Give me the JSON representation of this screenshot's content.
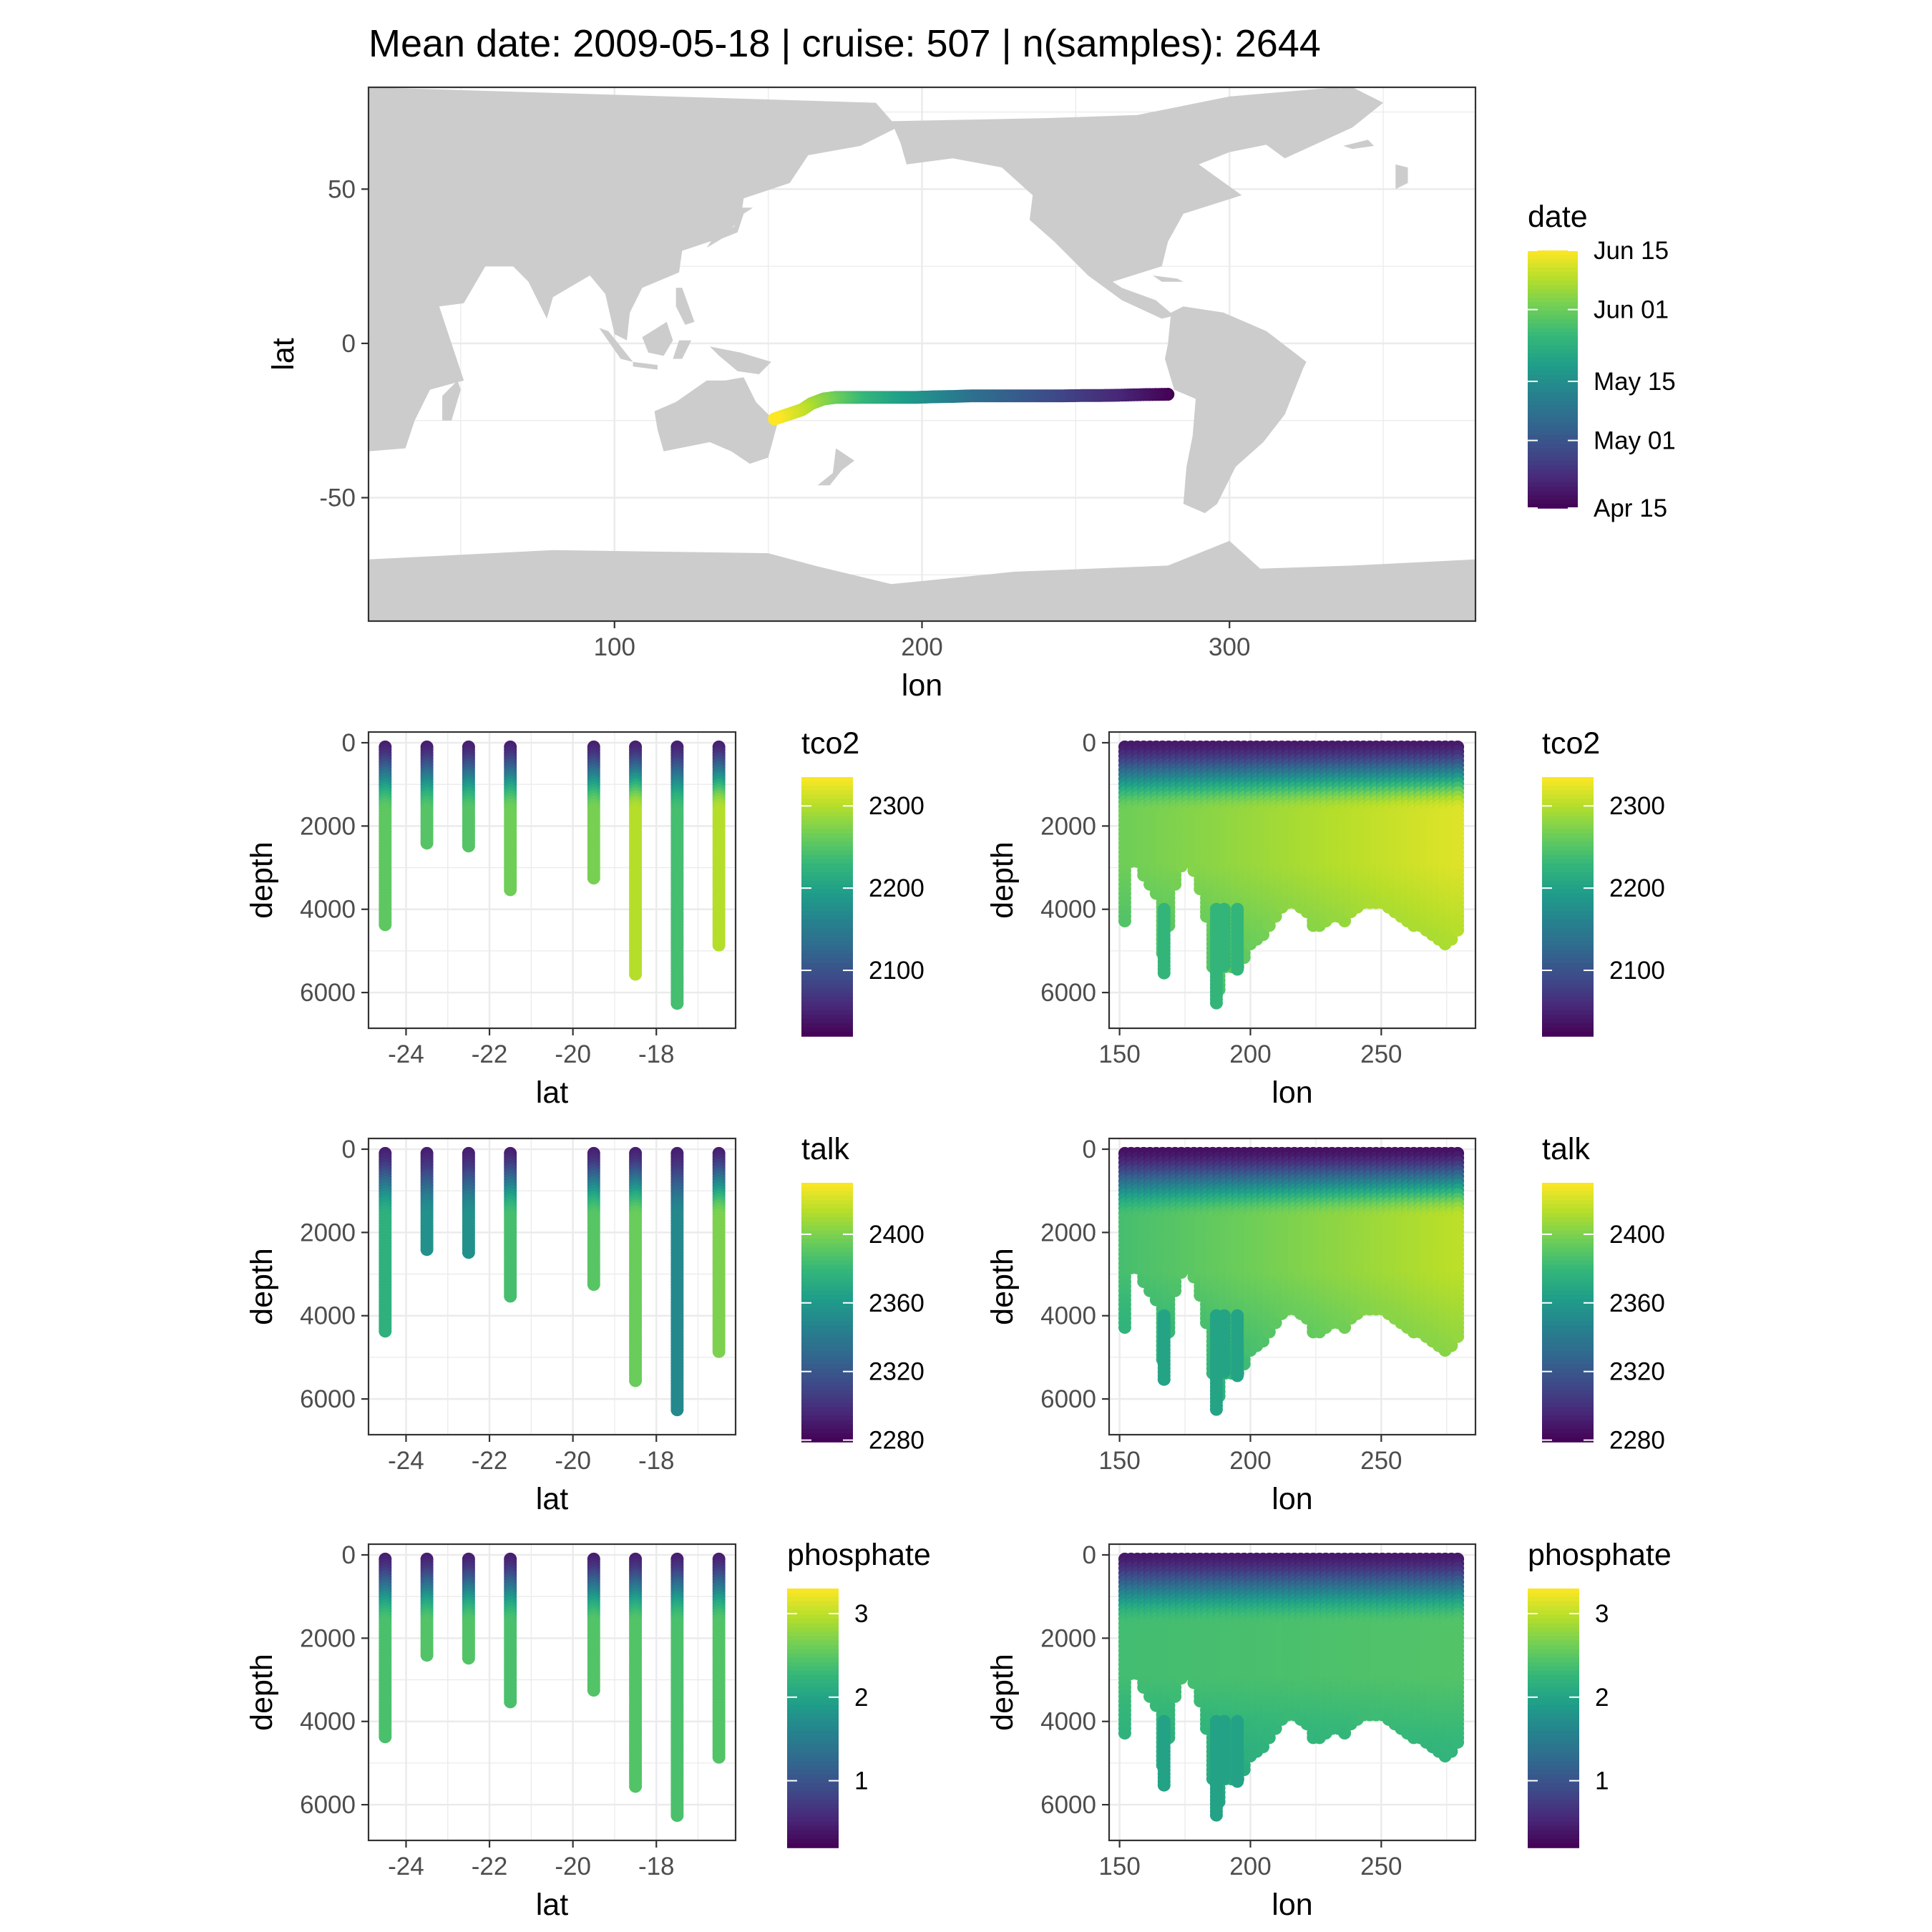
{
  "figure": {
    "title": "Mean date: 2009-05-18 | cruise: 507 | n(samples): 2644"
  },
  "colors": {
    "land": "#cccccc",
    "grid": "#ebebeb",
    "frame": "#333333",
    "tick_label": "#4d4d4d",
    "viridis": [
      "#440154",
      "#482878",
      "#3e4a89",
      "#31688e",
      "#26828e",
      "#1f9e89",
      "#35b779",
      "#6ece58",
      "#b5de2b",
      "#fde725"
    ]
  },
  "chart_data": [
    {
      "id": "map",
      "type": "scatter",
      "title": "",
      "xlabel": "lon",
      "ylabel": "lat",
      "xlim": [
        20,
        380
      ],
      "ylim": [
        -90,
        83
      ],
      "xticks": [
        100,
        200,
        300
      ],
      "yticks": [
        -50,
        0,
        50
      ],
      "grid": true,
      "background": "land mask (world map)",
      "legend": {
        "title": "date",
        "position": "right",
        "type": "colorbar",
        "labels": [
          "Apr 15",
          "May 01",
          "May 15",
          "Jun 01",
          "Jun 15"
        ],
        "label_values": [
          0,
          16,
          30,
          47,
          61
        ],
        "range": [
          0,
          61
        ]
      },
      "series": [
        {
          "lon": [
            280,
            272,
            264,
            258,
            252,
            246,
            240,
            234,
            228,
            222,
            216,
            210,
            204,
            198,
            192,
            186,
            180,
            176,
            172,
            168,
            164,
            161,
            158,
            155,
            152
          ],
          "lat": [
            -16.5,
            -16.6,
            -16.8,
            -16.9,
            -16.9,
            -17.0,
            -17.0,
            -17.0,
            -17.0,
            -17.0,
            -17.0,
            -17.2,
            -17.3,
            -17.5,
            -17.5,
            -17.5,
            -17.5,
            -17.5,
            -17.5,
            -18.0,
            -19.5,
            -21.5,
            -22.5,
            -23.5,
            -24.5
          ],
          "date": [
            0,
            3,
            6,
            8,
            10,
            12,
            14,
            16,
            18,
            20,
            22,
            25,
            28,
            31,
            34,
            37,
            40,
            43,
            46,
            49,
            52,
            55,
            57,
            59,
            61
          ]
        }
      ]
    },
    {
      "id": "tco2-lat",
      "type": "scatter",
      "xlabel": "lat",
      "ylabel": "depth",
      "xlim": [
        -24.9,
        -16.1
      ],
      "ylim": [
        0,
        6600
      ],
      "y_reversed": true,
      "xticks": [
        -24,
        -22,
        -20,
        -18
      ],
      "yticks": [
        0,
        2000,
        4000,
        6000
      ],
      "grid": true,
      "legend": {
        "title": "tco2",
        "position": "right",
        "type": "colorbar",
        "labels": [
          "2100",
          "2200",
          "2300"
        ],
        "label_values": [
          2100,
          2200,
          2300
        ],
        "range": [
          2020,
          2335
        ]
      },
      "stations": [
        {
          "x": -24.5,
          "max_depth": 4400,
          "deep_value": 2255
        },
        {
          "x": -23.5,
          "max_depth": 2450,
          "deep_value": 2250
        },
        {
          "x": -22.5,
          "max_depth": 2500,
          "deep_value": 2250
        },
        {
          "x": -21.5,
          "max_depth": 3550,
          "deep_value": 2265
        },
        {
          "x": -19.5,
          "max_depth": 3250,
          "deep_value": 2270
        },
        {
          "x": -18.5,
          "max_depth": 5600,
          "deep_value": 2300
        },
        {
          "x": -17.5,
          "max_depth": 6300,
          "deep_value": 2240
        },
        {
          "x": -16.5,
          "max_depth": 4900,
          "deep_value": 2300
        }
      ]
    },
    {
      "id": "tco2-lon",
      "type": "scatter",
      "xlabel": "lon",
      "ylabel": "depth",
      "xlim": [
        146,
        286
      ],
      "ylim": [
        0,
        6600
      ],
      "y_reversed": true,
      "xticks": [
        150,
        200,
        250
      ],
      "yticks": [
        0,
        2000,
        4000,
        6000
      ],
      "grid": true,
      "legend": {
        "title": "tco2",
        "position": "right",
        "type": "colorbar",
        "labels": [
          "2100",
          "2200",
          "2300"
        ],
        "label_values": [
          2100,
          2200,
          2300
        ],
        "range": [
          2020,
          2335
        ]
      },
      "section": {
        "surface_value": 2040,
        "deep_value_west": 2265,
        "deep_value_east": 2320,
        "profiles": [
          {
            "x": 152,
            "max_depth": 4300
          },
          {
            "x": 155,
            "max_depth": 2600
          },
          {
            "x": 160,
            "max_depth": 3300
          },
          {
            "x": 165,
            "max_depth": 3800
          },
          {
            "x": 167,
            "max_depth": 5600
          },
          {
            "x": 170,
            "max_depth": 3600
          },
          {
            "x": 175,
            "max_depth": 2800
          },
          {
            "x": 180,
            "max_depth": 3300
          },
          {
            "x": 184,
            "max_depth": 4500
          },
          {
            "x": 187,
            "max_depth": 6300
          },
          {
            "x": 190,
            "max_depth": 5400
          },
          {
            "x": 195,
            "max_depth": 5500
          },
          {
            "x": 200,
            "max_depth": 4900
          },
          {
            "x": 205,
            "max_depth": 4600
          },
          {
            "x": 210,
            "max_depth": 4200
          },
          {
            "x": 215,
            "max_depth": 3800
          },
          {
            "x": 220,
            "max_depth": 4000
          },
          {
            "x": 224,
            "max_depth": 4400
          },
          {
            "x": 228,
            "max_depth": 4400
          },
          {
            "x": 232,
            "max_depth": 4200
          },
          {
            "x": 236,
            "max_depth": 4300
          },
          {
            "x": 240,
            "max_depth": 4000
          },
          {
            "x": 245,
            "max_depth": 3900
          },
          {
            "x": 250,
            "max_depth": 3900
          },
          {
            "x": 255,
            "max_depth": 4100
          },
          {
            "x": 260,
            "max_depth": 4300
          },
          {
            "x": 265,
            "max_depth": 4500
          },
          {
            "x": 270,
            "max_depth": 4700
          },
          {
            "x": 275,
            "max_depth": 4900
          },
          {
            "x": 280,
            "max_depth": 4500
          }
        ]
      }
    },
    {
      "id": "talk-lat",
      "type": "scatter",
      "xlabel": "lat",
      "ylabel": "depth",
      "xlim": [
        -24.9,
        -16.1
      ],
      "ylim": [
        0,
        6600
      ],
      "y_reversed": true,
      "xticks": [
        -24,
        -22,
        -20,
        -18
      ],
      "yticks": [
        0,
        2000,
        4000,
        6000
      ],
      "grid": true,
      "legend": {
        "title": "talk",
        "position": "right",
        "type": "colorbar",
        "labels": [
          "2280",
          "2320",
          "2360",
          "2400"
        ],
        "label_values": [
          2280,
          2320,
          2360,
          2400
        ],
        "range": [
          2279,
          2430
        ]
      },
      "stations": [
        {
          "x": -24.5,
          "max_depth": 4400,
          "deep_value": 2375
        },
        {
          "x": -23.5,
          "max_depth": 2450,
          "deep_value": 2355
        },
        {
          "x": -22.5,
          "max_depth": 2500,
          "deep_value": 2355
        },
        {
          "x": -21.5,
          "max_depth": 3550,
          "deep_value": 2385
        },
        {
          "x": -19.5,
          "max_depth": 3250,
          "deep_value": 2390
        },
        {
          "x": -18.5,
          "max_depth": 5600,
          "deep_value": 2395
        },
        {
          "x": -17.5,
          "max_depth": 6300,
          "deep_value": 2350
        },
        {
          "x": -16.5,
          "max_depth": 4900,
          "deep_value": 2400
        }
      ]
    },
    {
      "id": "talk-lon",
      "type": "scatter",
      "xlabel": "lon",
      "ylabel": "depth",
      "xlim": [
        146,
        286
      ],
      "ylim": [
        0,
        6600
      ],
      "y_reversed": true,
      "xticks": [
        150,
        200,
        250
      ],
      "yticks": [
        0,
        2000,
        4000,
        6000
      ],
      "grid": true,
      "legend": {
        "title": "talk",
        "position": "right",
        "type": "colorbar",
        "labels": [
          "2280",
          "2320",
          "2360",
          "2400"
        ],
        "label_values": [
          2280,
          2320,
          2360,
          2400
        ],
        "range": [
          2279,
          2430
        ]
      },
      "section": {
        "surface_value": 2285,
        "deep_value_west": 2385,
        "deep_value_east": 2415,
        "profiles": [
          {
            "x": 152,
            "max_depth": 4300
          },
          {
            "x": 155,
            "max_depth": 2600
          },
          {
            "x": 160,
            "max_depth": 3300
          },
          {
            "x": 165,
            "max_depth": 3800
          },
          {
            "x": 167,
            "max_depth": 5600
          },
          {
            "x": 170,
            "max_depth": 3600
          },
          {
            "x": 175,
            "max_depth": 2800
          },
          {
            "x": 180,
            "max_depth": 3300
          },
          {
            "x": 184,
            "max_depth": 4500
          },
          {
            "x": 187,
            "max_depth": 6300
          },
          {
            "x": 190,
            "max_depth": 5400
          },
          {
            "x": 195,
            "max_depth": 5500
          },
          {
            "x": 200,
            "max_depth": 4900
          },
          {
            "x": 205,
            "max_depth": 4600
          },
          {
            "x": 210,
            "max_depth": 4200
          },
          {
            "x": 215,
            "max_depth": 3800
          },
          {
            "x": 220,
            "max_depth": 4000
          },
          {
            "x": 224,
            "max_depth": 4400
          },
          {
            "x": 228,
            "max_depth": 4400
          },
          {
            "x": 232,
            "max_depth": 4200
          },
          {
            "x": 236,
            "max_depth": 4300
          },
          {
            "x": 240,
            "max_depth": 4000
          },
          {
            "x": 245,
            "max_depth": 3900
          },
          {
            "x": 250,
            "max_depth": 3900
          },
          {
            "x": 255,
            "max_depth": 4100
          },
          {
            "x": 260,
            "max_depth": 4300
          },
          {
            "x": 265,
            "max_depth": 4500
          },
          {
            "x": 270,
            "max_depth": 4700
          },
          {
            "x": 275,
            "max_depth": 4900
          },
          {
            "x": 280,
            "max_depth": 4500
          }
        ]
      }
    },
    {
      "id": "phosphate-lat",
      "type": "scatter",
      "xlabel": "lat",
      "ylabel": "depth",
      "xlim": [
        -24.9,
        -16.1
      ],
      "ylim": [
        0,
        6600
      ],
      "y_reversed": true,
      "xticks": [
        -24,
        -22,
        -20,
        -18
      ],
      "yticks": [
        0,
        2000,
        4000,
        6000
      ],
      "grid": true,
      "legend": {
        "title": "phosphate",
        "position": "right",
        "type": "colorbar",
        "labels": [
          "1",
          "2",
          "3"
        ],
        "label_values": [
          1,
          2,
          3
        ],
        "range": [
          0.2,
          3.3
        ]
      },
      "stations": [
        {
          "x": -24.5,
          "max_depth": 4400,
          "deep_value": 2.4
        },
        {
          "x": -23.5,
          "max_depth": 2450,
          "deep_value": 2.45
        },
        {
          "x": -22.5,
          "max_depth": 2500,
          "deep_value": 2.45
        },
        {
          "x": -21.5,
          "max_depth": 3550,
          "deep_value": 2.4
        },
        {
          "x": -19.5,
          "max_depth": 3250,
          "deep_value": 2.45
        },
        {
          "x": -18.5,
          "max_depth": 5600,
          "deep_value": 2.45
        },
        {
          "x": -17.5,
          "max_depth": 6300,
          "deep_value": 2.4
        },
        {
          "x": -16.5,
          "max_depth": 4900,
          "deep_value": 2.45
        }
      ]
    },
    {
      "id": "phosphate-lon",
      "type": "scatter",
      "xlabel": "lon",
      "ylabel": "depth",
      "xlim": [
        146,
        286
      ],
      "ylim": [
        0,
        6600
      ],
      "y_reversed": true,
      "xticks": [
        150,
        200,
        250
      ],
      "yticks": [
        0,
        2000,
        4000,
        6000
      ],
      "grid": true,
      "legend": {
        "title": "phosphate",
        "position": "right",
        "type": "colorbar",
        "labels": [
          "1",
          "2",
          "3"
        ],
        "label_values": [
          1,
          2,
          3
        ],
        "range": [
          0.2,
          3.3
        ]
      },
      "section": {
        "surface_value": 0.4,
        "deep_value_west": 2.35,
        "deep_value_east": 2.45,
        "profiles": [
          {
            "x": 152,
            "max_depth": 4300
          },
          {
            "x": 155,
            "max_depth": 2600
          },
          {
            "x": 160,
            "max_depth": 3300
          },
          {
            "x": 165,
            "max_depth": 3800
          },
          {
            "x": 167,
            "max_depth": 5600
          },
          {
            "x": 170,
            "max_depth": 3600
          },
          {
            "x": 175,
            "max_depth": 2800
          },
          {
            "x": 180,
            "max_depth": 3300
          },
          {
            "x": 184,
            "max_depth": 4500
          },
          {
            "x": 187,
            "max_depth": 6300
          },
          {
            "x": 190,
            "max_depth": 5400
          },
          {
            "x": 195,
            "max_depth": 5500
          },
          {
            "x": 200,
            "max_depth": 4900
          },
          {
            "x": 205,
            "max_depth": 4600
          },
          {
            "x": 210,
            "max_depth": 4200
          },
          {
            "x": 215,
            "max_depth": 3800
          },
          {
            "x": 220,
            "max_depth": 4000
          },
          {
            "x": 224,
            "max_depth": 4400
          },
          {
            "x": 228,
            "max_depth": 4400
          },
          {
            "x": 232,
            "max_depth": 4200
          },
          {
            "x": 236,
            "max_depth": 4300
          },
          {
            "x": 240,
            "max_depth": 4000
          },
          {
            "x": 245,
            "max_depth": 3900
          },
          {
            "x": 250,
            "max_depth": 3900
          },
          {
            "x": 255,
            "max_depth": 4100
          },
          {
            "x": 260,
            "max_depth": 4300
          },
          {
            "x": 265,
            "max_depth": 4500
          },
          {
            "x": 270,
            "max_depth": 4700
          },
          {
            "x": 275,
            "max_depth": 4900
          },
          {
            "x": 280,
            "max_depth": 4500
          }
        ]
      }
    }
  ]
}
